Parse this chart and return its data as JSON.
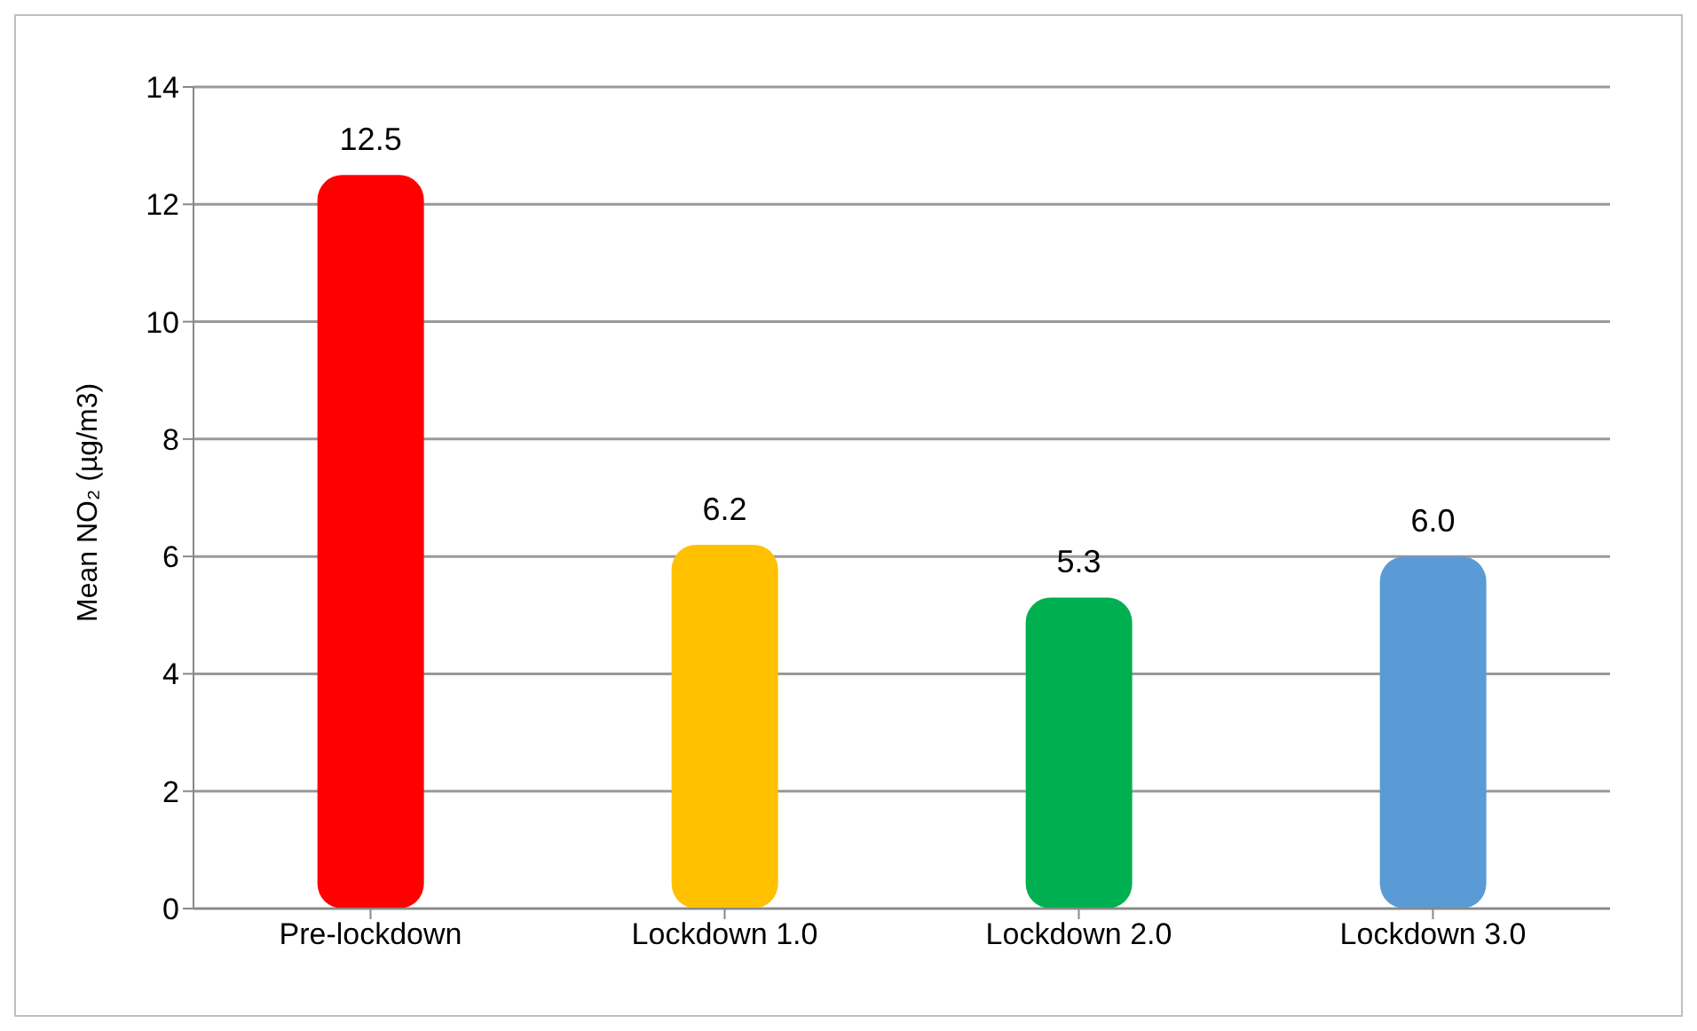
{
  "chart_data": {
    "type": "bar",
    "ylabel": "Mean NO₂ (µg/m3)",
    "categories": [
      "Pre-lockdown",
      "Lockdown 1.0",
      "Lockdown 2.0",
      "Lockdown 3.0"
    ],
    "values": [
      12.5,
      6.2,
      5.3,
      6.0
    ],
    "colors": [
      "#ff0000",
      "#ffc000",
      "#00b050",
      "#5b9bd5"
    ],
    "value_labels": [
      "12.5",
      "6.2",
      "5.3",
      "6.0"
    ],
    "ylim": [
      0,
      14
    ],
    "yticks": [
      0,
      2,
      4,
      6,
      8,
      10,
      12,
      14
    ],
    "grid": "y"
  }
}
